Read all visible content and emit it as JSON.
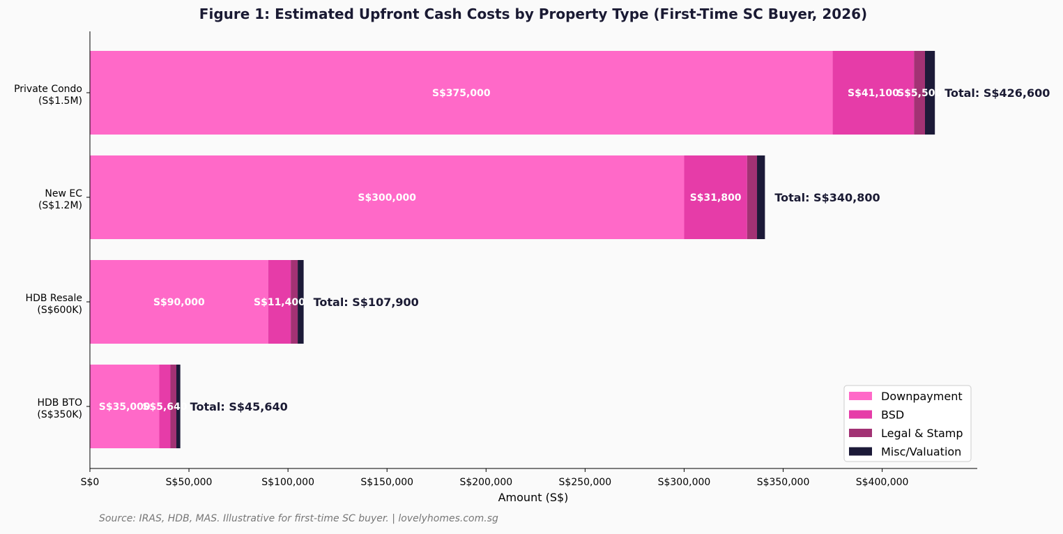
{
  "chart_data": {
    "type": "bar",
    "orientation": "horizontal",
    "stacked": true,
    "title": "Figure 1: Estimated Upfront Cash Costs by Property Type (First-Time SC Buyer, 2026)",
    "xlabel": "Amount (S$)",
    "ylabel": "",
    "xlim": [
      0,
      448000
    ],
    "x_ticks": [
      0,
      50000,
      100000,
      150000,
      200000,
      250000,
      300000,
      350000,
      400000
    ],
    "x_tick_labels": [
      "S$0",
      "S$50,000",
      "S$100,000",
      "S$150,000",
      "S$200,000",
      "S$250,000",
      "S$300,000",
      "S$350,000",
      "S$400,000"
    ],
    "categories": [
      [
        "Private Condo",
        "(S$1.5M)"
      ],
      [
        "New EC",
        "(S$1.2M)"
      ],
      [
        "HDB Resale",
        "(S$600K)"
      ],
      [
        "HDB BTO",
        "(S$350K)"
      ]
    ],
    "series": [
      {
        "name": "Downpayment",
        "color": "#ff69c8",
        "values": [
          375000,
          300000,
          90000,
          35000
        ],
        "labels": [
          "S$375,000",
          "S$300,000",
          "S$90,000",
          "S$35,000"
        ]
      },
      {
        "name": "BSD",
        "color": "#e63ca8",
        "values": [
          41100,
          31800,
          11400,
          5640
        ],
        "labels": [
          "S$41,100",
          "S$31,800",
          "S$11,400",
          "S$5,640"
        ]
      },
      {
        "name": "Legal & Stamp",
        "color": "#a23274",
        "values": [
          5500,
          5000,
          3500,
          3000
        ],
        "labels": [
          "S$5,500",
          "",
          "",
          ""
        ]
      },
      {
        "name": "Misc/Valuation",
        "color": "#1c1a38",
        "values": [
          5000,
          4000,
          3000,
          2000
        ],
        "labels": [
          "",
          "",
          "",
          ""
        ]
      }
    ],
    "totals": [
      "Total: S$426,600",
      "Total: S$340,800",
      "Total: S$107,900",
      "Total: S$45,640"
    ],
    "legend_position": "bottom-right",
    "grid": false
  },
  "source": "Source: IRAS, HDB, MAS. Illustrative for first-time SC buyer. | lovelyhomes.com.sg"
}
